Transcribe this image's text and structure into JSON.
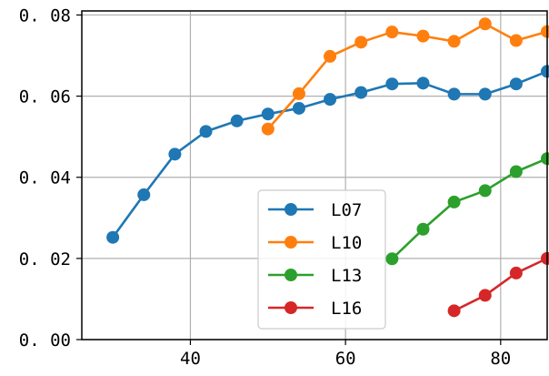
{
  "chart_data": {
    "type": "line",
    "title": "",
    "xlabel": "",
    "ylabel": "",
    "xlim": [
      26,
      86
    ],
    "ylim": [
      0,
      0.081
    ],
    "xticks": [
      40,
      60,
      80
    ],
    "xtick_labels": [
      "40",
      "60",
      "80"
    ],
    "yticks": [
      0.0,
      0.02,
      0.04,
      0.06,
      0.08
    ],
    "ytick_labels": [
      "0. 00",
      "0. 02",
      "0. 04",
      "0. 06",
      "0. 08"
    ],
    "grid": true,
    "legend_position": "lower center",
    "series": [
      {
        "name": "L07",
        "color": "#1f77b4",
        "x": [
          30,
          34,
          38,
          42,
          46,
          50,
          54,
          58,
          62,
          66,
          70,
          74,
          78,
          82,
          86
        ],
        "y": [
          0.0252,
          0.0357,
          0.0457,
          0.0513,
          0.0539,
          0.0556,
          0.057,
          0.0592,
          0.0609,
          0.063,
          0.0632,
          0.0605,
          0.0605,
          0.063,
          0.0661
        ]
      },
      {
        "name": "L10",
        "color": "#ff7f0e",
        "x": [
          50,
          54,
          58,
          62,
          66,
          70,
          74,
          78,
          82,
          86
        ],
        "y": [
          0.0519,
          0.0606,
          0.0698,
          0.0733,
          0.0758,
          0.0748,
          0.0735,
          0.0778,
          0.0737,
          0.0759
        ]
      },
      {
        "name": "L13",
        "color": "#2ca02c",
        "x": [
          66,
          70,
          74,
          78,
          82,
          86
        ],
        "y": [
          0.0199,
          0.0272,
          0.0339,
          0.0367,
          0.0414,
          0.0446
        ]
      },
      {
        "name": "L16",
        "color": "#d62728",
        "x": [
          74,
          78,
          82,
          86
        ],
        "y": [
          0.0071,
          0.0109,
          0.0164,
          0.02
        ]
      }
    ]
  }
}
